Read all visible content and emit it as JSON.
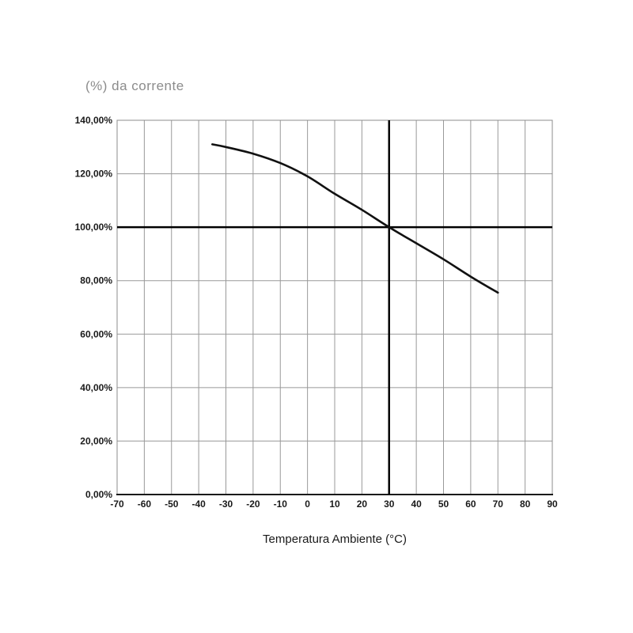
{
  "page": {
    "background": "#ffffff"
  },
  "chart_data": {
    "type": "line",
    "title": "(%) da corrente",
    "xlabel": "Temperatura Ambiente (°C)",
    "ylabel": "",
    "xlim": [
      -70,
      90
    ],
    "ylim": [
      0,
      140
    ],
    "x_tick_step": 10,
    "y_tick_step": 20,
    "x_tick_labels": [
      "-70",
      "-60",
      "-50",
      "-40",
      "-30",
      "-20",
      "-10",
      "0",
      "10",
      "20",
      "30",
      "40",
      "50",
      "60",
      "70",
      "80",
      "90"
    ],
    "y_tick_labels": [
      "0,00%",
      "20,00%",
      "40,00%",
      "60,00%",
      "80,00%",
      "100,00%",
      "120,00%",
      "140,00%"
    ],
    "grid": true,
    "legend": "none",
    "reference_lines": {
      "horizontal_at_percent": 100,
      "vertical_at_temperature": 30
    },
    "series": [
      {
        "name": "current-derating-curve",
        "points": [
          [
            -35,
            131
          ],
          [
            -30,
            130
          ],
          [
            -20,
            127.5
          ],
          [
            -10,
            124
          ],
          [
            0,
            119
          ],
          [
            10,
            112.5
          ],
          [
            20,
            106.5
          ],
          [
            30,
            100
          ],
          [
            40,
            94
          ],
          [
            50,
            88
          ],
          [
            60,
            81.5
          ],
          [
            70,
            75.5
          ]
        ]
      }
    ],
    "colors": {
      "curve": "#111111",
      "grid": "#999999",
      "frame": "#8c8c8c",
      "axis": "#1a1a1a",
      "reference": "#000000",
      "title": "#8c8c8c",
      "tick_label": "#1a1a1a"
    }
  }
}
